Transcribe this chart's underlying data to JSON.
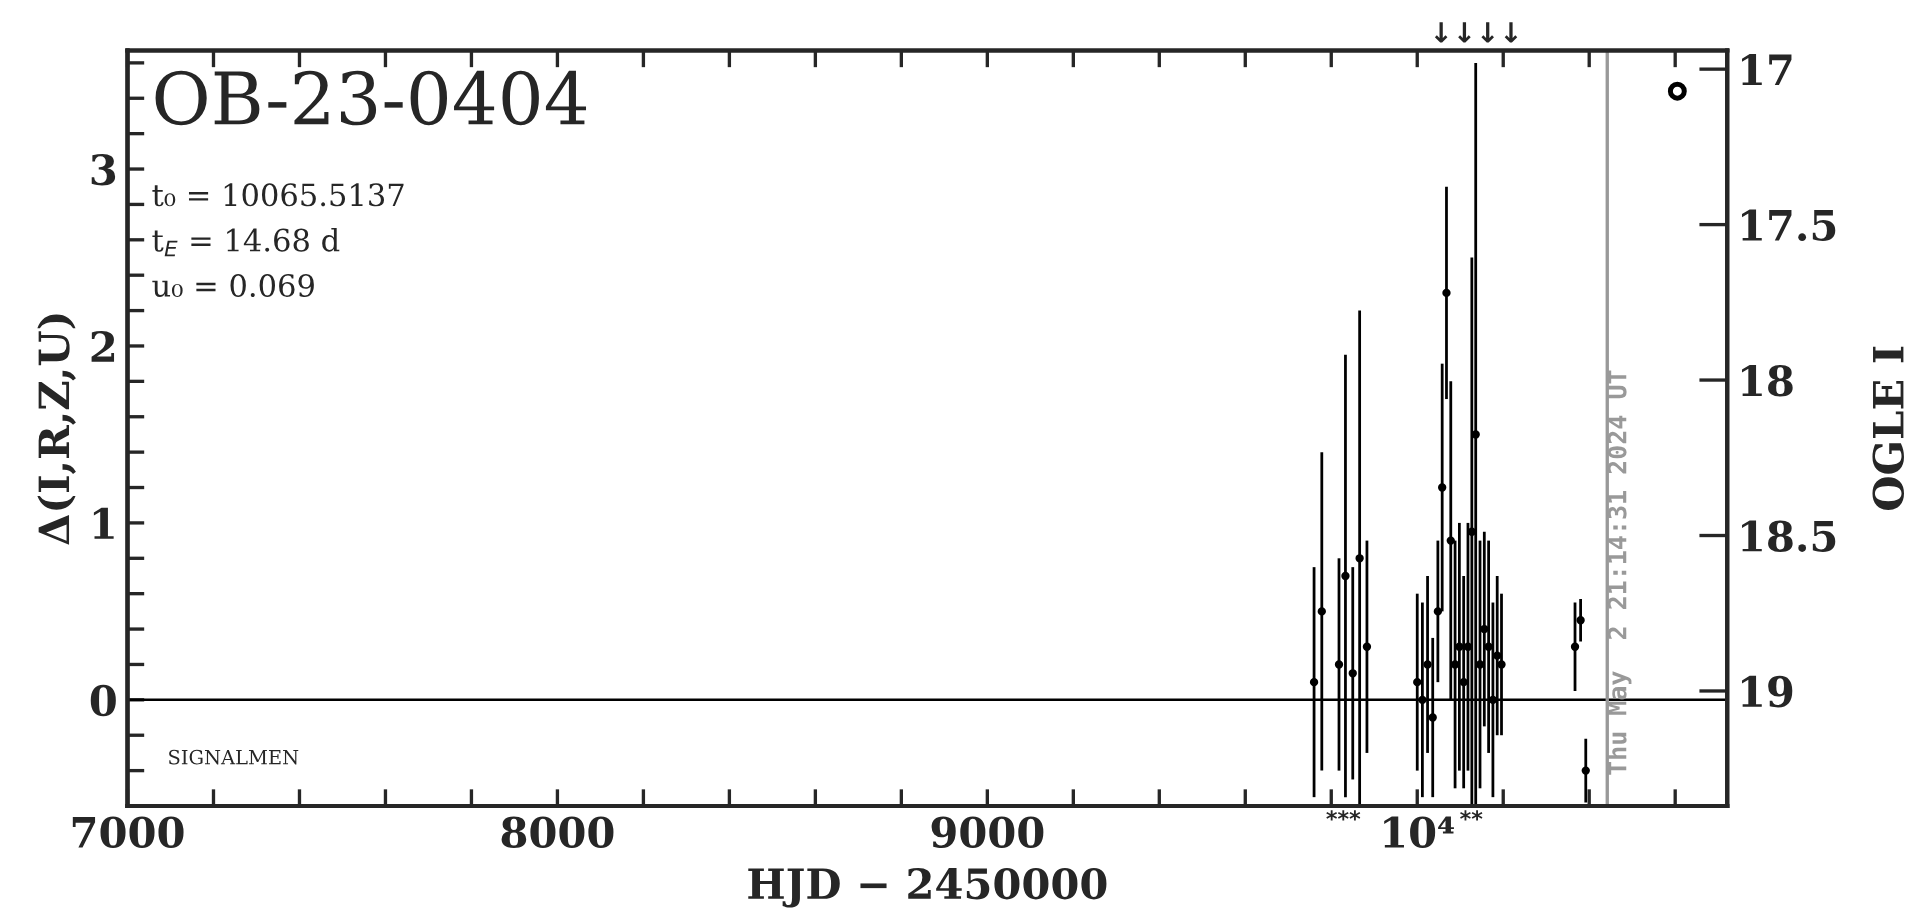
{
  "chart_data": {
    "type": "scatter",
    "title": "OB-23-0404",
    "xlabel": "HJD − 2450000",
    "ylabel": "Δ(I,R,Z,U)",
    "y2label": "OGLE I",
    "xlim": [
      7000,
      10721
    ],
    "xticks": [
      7000,
      {
        "value": 7200,
        "label": null
      },
      {
        "value": 7400,
        "label": null
      },
      {
        "value": 7600,
        "label": null
      },
      {
        "value": 7800,
        "label": null
      },
      8000,
      {
        "value": 8200,
        "label": null
      },
      {
        "value": 8400,
        "label": null
      },
      {
        "value": 8600,
        "label": null
      },
      {
        "value": 8800,
        "label": null
      },
      9000,
      {
        "value": 9200,
        "label": null
      },
      {
        "value": 9400,
        "label": null
      },
      {
        "value": 9600,
        "label": null
      },
      {
        "value": 9800,
        "label": null
      },
      {
        "value": 10000,
        "label": "10⁴"
      },
      {
        "value": 10200,
        "label": null
      },
      {
        "value": 10400,
        "label": null
      },
      {
        "value": 10600,
        "label": null
      }
    ],
    "ylim": [
      -0.6,
      3.67
    ],
    "yticks": [
      {
        "value": -0.4,
        "label": null
      },
      {
        "value": -0.2,
        "label": null
      },
      0,
      {
        "value": 0.2,
        "label": null
      },
      {
        "value": 0.4,
        "label": null
      },
      {
        "value": 0.6,
        "label": null
      },
      {
        "value": 0.8,
        "label": null
      },
      1,
      {
        "value": 1.2,
        "label": null
      },
      {
        "value": 1.4,
        "label": null
      },
      {
        "value": 1.6,
        "label": null
      },
      {
        "value": 1.8,
        "label": null
      },
      2,
      {
        "value": 2.2,
        "label": null
      },
      {
        "value": 2.4,
        "label": null
      },
      {
        "value": 2.6,
        "label": null
      },
      {
        "value": 2.8,
        "label": null
      },
      3,
      {
        "value": 3.2,
        "label": null
      },
      {
        "value": 3.4,
        "label": null
      },
      {
        "value": 3.6,
        "label": null
      }
    ],
    "y2lim": [
      19.37,
      16.94
    ],
    "y2ticks": [
      17,
      17.5,
      18,
      18.5,
      19
    ],
    "grid": false,
    "series": [
      {
        "color": "#000000",
        "marker": "circle",
        "x": [
          9760,
          9778,
          9818,
          9833,
          9850,
          9866,
          9883,
          10000,
          10012,
          10024,
          10036,
          10048,
          10058,
          10068,
          10078,
          10088,
          10098,
          10108,
          10118,
          10127,
          10136,
          10146,
          10156,
          10166,
          10176,
          10186,
          10196,
          10367,
          10380,
          10392
        ],
        "values": [
          0.1,
          0.5,
          0.2,
          0.7,
          0.15,
          0.8,
          0.3,
          0.1,
          0.0,
          0.2,
          -0.1,
          0.5,
          1.2,
          2.3,
          0.9,
          0.2,
          0.3,
          0.1,
          0.3,
          0.95,
          1.5,
          0.2,
          0.4,
          0.3,
          0.0,
          0.25,
          0.2,
          0.3,
          0.45,
          -0.4
        ],
        "errors": [
          0.65,
          0.9,
          0.6,
          1.25,
          0.6,
          1.4,
          0.6,
          0.5,
          0.55,
          0.5,
          0.45,
          0.4,
          0.7,
          0.6,
          0.9,
          0.7,
          0.7,
          0.6,
          0.7,
          1.55,
          2.1,
          0.7,
          0.55,
          0.6,
          0.55,
          0.45,
          0.4,
          0.25,
          0.12,
          0.18
        ]
      },
      {
        "color": "#000000",
        "marker": "circle",
        "x": [
          10605
        ],
        "values": [
          3.44
        ]
      }
    ],
    "ref_lines": [
      {
        "axis": "y",
        "value": 0,
        "color": "#000000"
      },
      {
        "axis": "x",
        "value": 10442,
        "color": "#999999"
      }
    ],
    "annotations": [
      "t₀ = 10065.5137",
      "t$_{E}$ = 14.68 d",
      "u₀ = 0.069",
      "SIGNALMEN",
      "Thu May  2 21:14:31 2024 UT",
      "***",
      "**",
      "↓↓↓↓"
    ]
  }
}
